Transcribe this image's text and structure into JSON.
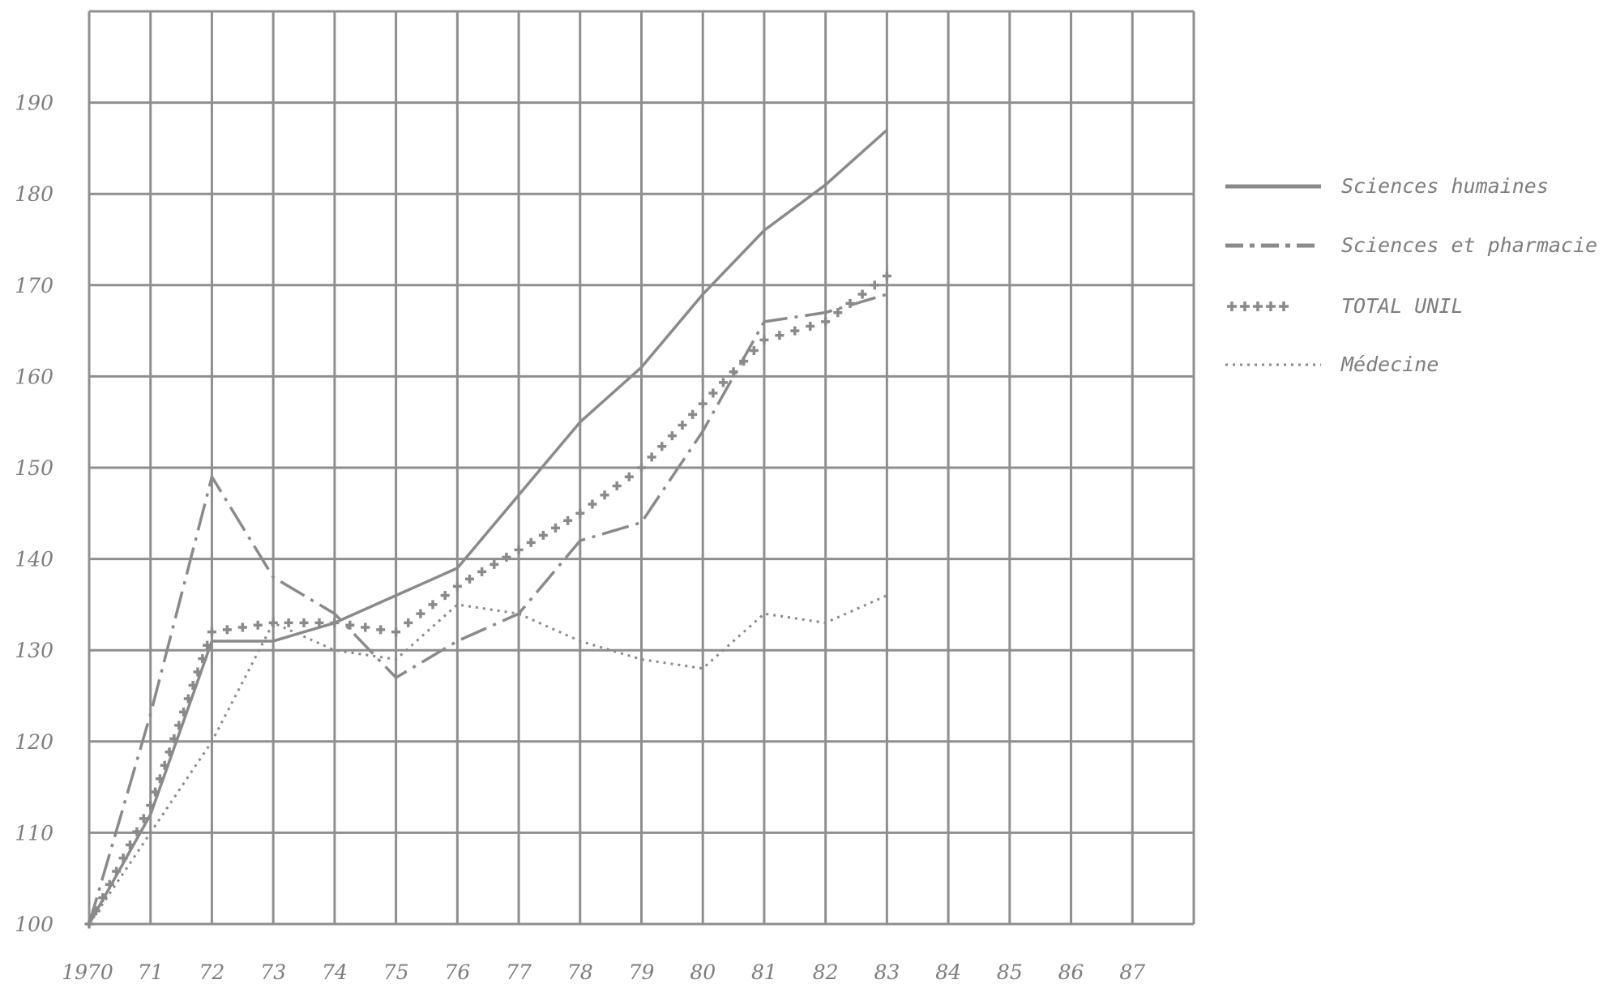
{
  "chart_data": {
    "type": "line",
    "title": "",
    "xlabel": "",
    "ylabel": "",
    "grid": true,
    "legend_position": "right",
    "x_tick_labels": [
      "1970",
      "71",
      "72",
      "73",
      "74",
      "75",
      "76",
      "77",
      "78",
      "79",
      "80",
      "81",
      "82",
      "83",
      "84",
      "85",
      "86",
      "87"
    ],
    "y_tick_labels": [
      "100",
      "110",
      "120",
      "130",
      "140",
      "150",
      "160",
      "170",
      "180",
      "190"
    ],
    "xlim": [
      1970,
      1988
    ],
    "ylim": [
      100,
      200
    ],
    "x": [
      1970,
      1971,
      1972,
      1973,
      1974,
      1975,
      1976,
      1977,
      1978,
      1979,
      1980,
      1981,
      1982,
      1983
    ],
    "series": [
      {
        "name": "Sciences humaines",
        "style": "solid",
        "values": [
          100,
          112,
          131,
          131,
          133,
          136,
          139,
          147,
          155,
          161,
          169,
          176,
          181,
          187
        ]
      },
      {
        "name": "Sciences et pharmacie",
        "style": "dashdot",
        "values": [
          100,
          123,
          149,
          138,
          134,
          127,
          131,
          134,
          142,
          144,
          154,
          166,
          167,
          169
        ]
      },
      {
        "name": "TOTAL UNIL",
        "style": "crosses",
        "values": [
          100,
          113,
          132,
          133,
          133,
          132,
          137,
          141,
          145,
          150,
          157,
          164,
          166,
          171
        ]
      },
      {
        "name": "Médecine",
        "style": "dotted",
        "values": [
          100,
          110,
          120,
          133,
          130,
          129,
          135,
          134,
          131,
          129,
          128,
          134,
          133,
          136
        ]
      }
    ],
    "colors": {
      "line": "#8a8a8a",
      "grid": "#8f8f8f",
      "text": "#7d7d7d"
    }
  }
}
